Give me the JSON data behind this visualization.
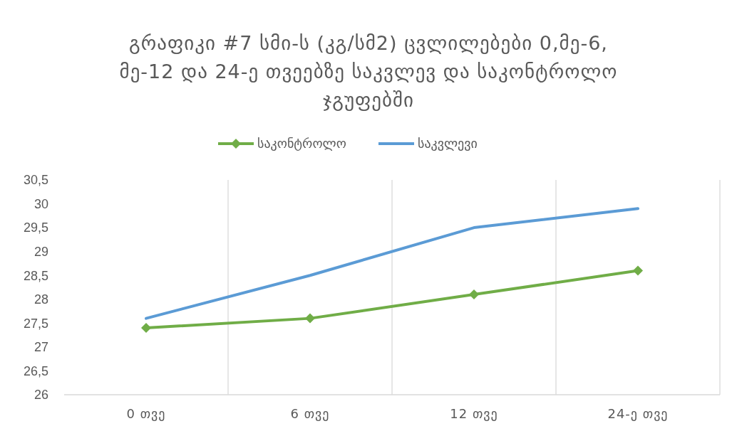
{
  "chart_data": {
    "type": "line",
    "title": "გრაფიკი #7 სმი-ს (კგ/სმ2) ცვლილებები 0,მე-6, მე-12 და 24-ე თვეებზე საკვლევ და საკონტროლო ჯგუფებში",
    "categories": [
      "0 თვე",
      "6 თვე",
      "12 თვე",
      "24-ე თვე"
    ],
    "series": [
      {
        "name": "საკონტროლო",
        "color": "#70ad47",
        "marker": "diamond",
        "values": [
          27.4,
          27.6,
          28.1,
          28.6
        ]
      },
      {
        "name": "საკვლევი",
        "color": "#5b9bd5",
        "marker": "none",
        "values": [
          27.6,
          28.5,
          29.5,
          29.9
        ]
      }
    ],
    "ylim": [
      26,
      30.5
    ],
    "yticks": [
      26,
      {
        "value": 26.5,
        "label": "26,5"
      },
      27,
      {
        "value": 27.5,
        "label": "27,5"
      },
      28,
      {
        "value": 28.5,
        "label": "28,5"
      },
      29,
      {
        "value": 29.5,
        "label": "29,5"
      },
      30,
      {
        "value": 30.5,
        "label": "30,5"
      }
    ],
    "grid": "x",
    "legend": "top"
  }
}
